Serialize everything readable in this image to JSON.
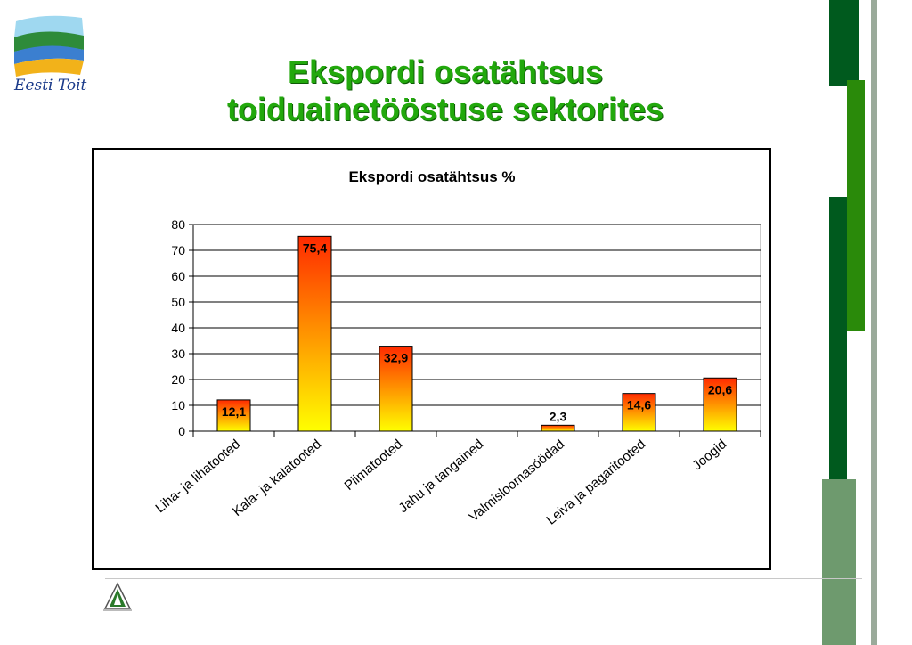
{
  "slide": {
    "title_line1": "Ekspordi osatähtsus",
    "title_line2": "toiduainetööstuse sektorites",
    "logo_text": "Eesti Toit"
  },
  "colors": {
    "title": "#22a80c",
    "bar_top": "#ff2a00",
    "bar_bottom": "#ffff00",
    "dark_green": "#005a1e",
    "mid_green": "#2a8a0a",
    "sage_green": "#6e9a6e"
  },
  "chart_data": {
    "type": "bar",
    "title": "Ekspordi osatähtsus %",
    "categories": [
      "Liha- ja lihatooted",
      "Kala- ja kalatooted",
      "Piimatooted",
      "Jahu ja tangained",
      "Valmisloomasöödad",
      "Leiva ja pagaritooted",
      "Joogid"
    ],
    "values": [
      12.1,
      75.4,
      32.9,
      null,
      2.3,
      14.6,
      20.6
    ],
    "data_labels": [
      "12,1",
      "75,4",
      "32,9",
      "",
      "2,3",
      "14,6",
      "20,6"
    ],
    "yticks": [
      "0",
      "10",
      "20",
      "30",
      "40",
      "50",
      "60",
      "70",
      "80"
    ],
    "ylim": [
      0,
      80
    ],
    "grid": true,
    "legend": false
  }
}
